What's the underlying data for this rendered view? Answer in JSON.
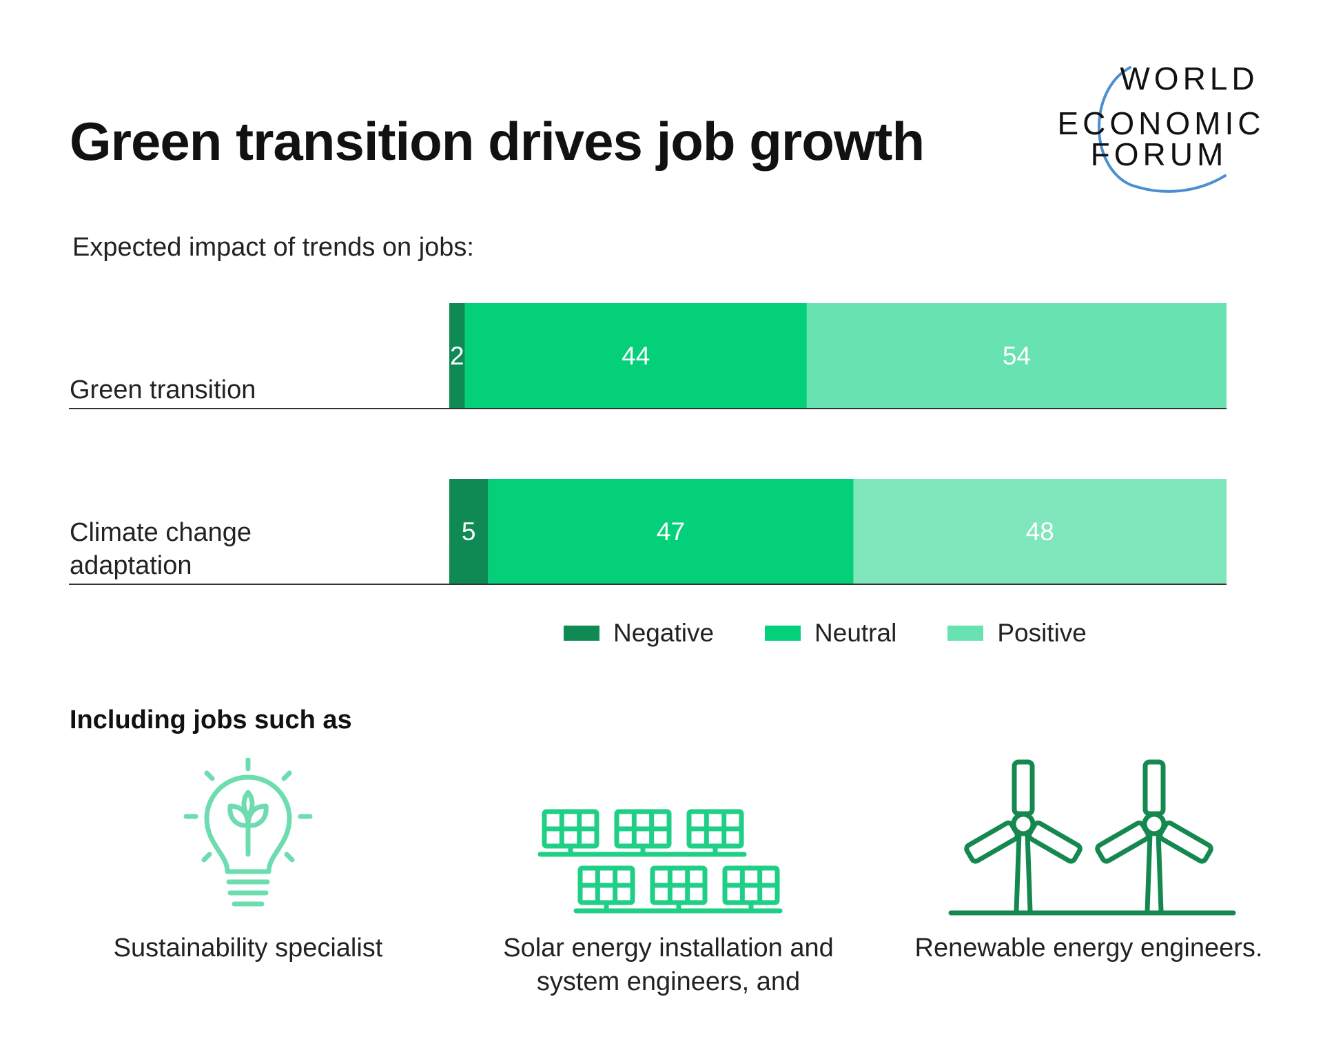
{
  "title": "Green transition drives job growth",
  "logo": {
    "lines": [
      "WORLD",
      "ECONOMIC",
      "FORUM"
    ],
    "arc_color": "#4a8fd0"
  },
  "colors": {
    "negative": "#0f8a55",
    "neutral": "#05d07a",
    "positive_row1": "#68e2b1",
    "positive_row2": "#7fe7bb",
    "icon_light": "#6ddcaf",
    "icon_mid": "#1ecf85",
    "icon_dark": "#15884f"
  },
  "chart_data": {
    "type": "bar",
    "orientation": "horizontal",
    "stacked": true,
    "title": "Expected impact of trends on jobs:",
    "categories": [
      "Green transition",
      "Climate change adaptation"
    ],
    "category_label_lines": [
      [
        "Green transition"
      ],
      [
        "Climate change",
        "adaptation"
      ]
    ],
    "series": [
      {
        "name": "Negative",
        "values": [
          2,
          5
        ]
      },
      {
        "name": "Neutral",
        "values": [
          44,
          47
        ]
      },
      {
        "name": "Positive",
        "values": [
          54,
          48
        ]
      }
    ],
    "xlim": [
      0,
      100
    ],
    "grid": false,
    "legend": "bottom"
  },
  "jobs": {
    "heading": "Including jobs such as",
    "items": [
      {
        "icon": "lightbulb-plant-icon",
        "label": "Sustainability specialist"
      },
      {
        "icon": "solar-panels-icon",
        "label": "Solar energy installation and system engineers, and"
      },
      {
        "icon": "wind-turbines-icon",
        "label": "Renewable energy engineers."
      }
    ]
  }
}
